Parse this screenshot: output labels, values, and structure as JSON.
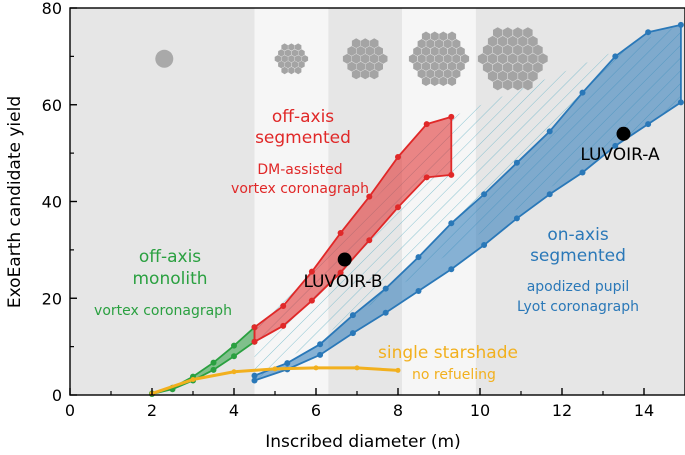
{
  "chart_data": {
    "type": "line",
    "xlabel": "Inscribed diameter (m)",
    "ylabel": "ExoEarth candidate yield",
    "xlim": [
      0,
      15
    ],
    "ylim": [
      0,
      80
    ],
    "xticks": [
      0,
      2,
      4,
      6,
      8,
      10,
      12,
      14
    ],
    "yticks": [
      0,
      20,
      40,
      60,
      80
    ],
    "grid": false,
    "bands": [
      {
        "x": [
          0,
          4.5
        ],
        "color": "#e6e6e6"
      },
      {
        "x": [
          4.5,
          6.3
        ],
        "color": "#f6f6f6"
      },
      {
        "x": [
          6.3,
          8.1
        ],
        "color": "#e6e6e6"
      },
      {
        "x": [
          8.1,
          9.9
        ],
        "color": "#f6f6f6"
      },
      {
        "x": [
          9.9,
          15
        ],
        "color": "#e6e6e6"
      }
    ],
    "series": [
      {
        "name": "off-axis monolith",
        "color": "#2aa040",
        "x": [
          2,
          2.5,
          3,
          3.5,
          4,
          4.5
        ],
        "upper": [
          0.3,
          1.5,
          3.8,
          6.7,
          10.2,
          14.0
        ],
        "lower": [
          0.2,
          1.2,
          3.0,
          5.2,
          8.0,
          11.0
        ]
      },
      {
        "name": "off-axis segmented",
        "color": "#e02828",
        "x": [
          4.5,
          5.2,
          5.9,
          6.6,
          7.3,
          8.0,
          8.7,
          9.3
        ],
        "upper": [
          14.0,
          18.4,
          25.5,
          33.5,
          41.0,
          49.2,
          56.0,
          57.5
        ],
        "lower": [
          11.0,
          14.3,
          19.5,
          25.3,
          32.0,
          38.8,
          45.0,
          45.5
        ]
      },
      {
        "name": "on-axis segmented",
        "color": "#2a78b8",
        "x": [
          4.5,
          5.3,
          6.1,
          6.9,
          7.7,
          8.5,
          9.3,
          10.1,
          10.9,
          11.7,
          12.5,
          13.3,
          14.1,
          14.9
        ],
        "upper": [
          4.0,
          6.6,
          10.5,
          16.5,
          22.0,
          28.5,
          35.5,
          41.5,
          48.0,
          54.5,
          62.5,
          70.0,
          75.0,
          76.5
        ],
        "lower": [
          3.0,
          5.3,
          8.3,
          12.8,
          17.0,
          21.5,
          26.0,
          31.0,
          36.5,
          41.5,
          46.0,
          51.5,
          56.0,
          60.5
        ]
      },
      {
        "name": "single starshade",
        "color": "#f2b01e",
        "x": [
          2,
          3,
          4,
          5,
          6,
          7,
          8
        ],
        "values": [
          0.3,
          3.2,
          4.8,
          5.4,
          5.6,
          5.6,
          5.1
        ]
      }
    ],
    "points": [
      {
        "name": "LUVOIR-B",
        "x": 6.7,
        "y": 28
      },
      {
        "name": "LUVOIR-A",
        "x": 13.5,
        "y": 54
      }
    ],
    "annotations": {
      "monolith_1": "off-axis",
      "monolith_2": "monolith",
      "monolith_3": "vortex coronagraph",
      "segmented_1": "off-axis",
      "segmented_2": "segmented",
      "segmented_3": "DM-assisted",
      "segmented_4": "vortex coronagraph",
      "onaxis_1": "on-axis",
      "onaxis_2": "segmented",
      "onaxis_3": "apodized pupil",
      "onaxis_4": "Lyot coronagraph",
      "starshade_1": "single starshade",
      "starshade_2": "no refueling",
      "luvoir_b": "LUVOIR-B",
      "luvoir_a": "LUVOIR-A"
    }
  }
}
